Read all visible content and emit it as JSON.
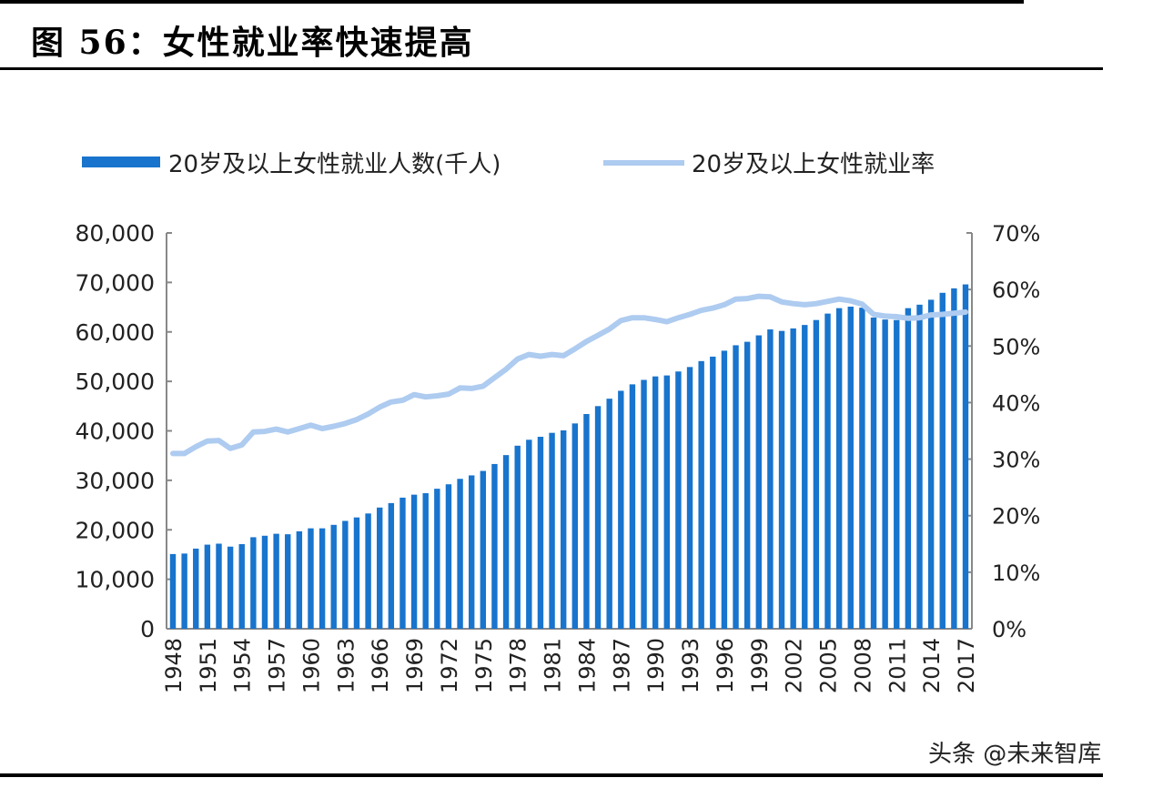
{
  "title": "图 56：女性就业率快速提高",
  "watermark": "头条 @未来智库",
  "colors": {
    "bar": "#1874cd",
    "line": "#aecbf0",
    "axis": "#888888"
  },
  "chart_data": {
    "type": "bar+line",
    "legend_position": "top",
    "grid": false,
    "categories": [
      1948,
      1949,
      1950,
      1951,
      1952,
      1953,
      1954,
      1955,
      1956,
      1957,
      1958,
      1959,
      1960,
      1961,
      1962,
      1963,
      1964,
      1965,
      1966,
      1967,
      1968,
      1969,
      1970,
      1971,
      1972,
      1973,
      1974,
      1975,
      1976,
      1977,
      1978,
      1979,
      1980,
      1981,
      1982,
      1983,
      1984,
      1985,
      1986,
      1987,
      1988,
      1989,
      1990,
      1991,
      1992,
      1993,
      1994,
      1995,
      1996,
      1997,
      1998,
      1999,
      2000,
      2001,
      2002,
      2003,
      2004,
      2005,
      2006,
      2007,
      2008,
      2009,
      2010,
      2011,
      2012,
      2013,
      2014,
      2015,
      2016,
      2017
    ],
    "x_tick_labels": [
      "1948",
      "1951",
      "1954",
      "1957",
      "1960",
      "1963",
      "1966",
      "1969",
      "1972",
      "1975",
      "1978",
      "1981",
      "1984",
      "1987",
      "1990",
      "1993",
      "1996",
      "1999",
      "2002",
      "2005",
      "2008",
      "2011",
      "2014",
      "2017"
    ],
    "y_left": {
      "range": [
        0,
        80000
      ],
      "tick_labels": [
        "0",
        "10,000",
        "20,000",
        "30,000",
        "40,000",
        "50,000",
        "60,000",
        "70,000",
        "80,000"
      ]
    },
    "y_right": {
      "range": [
        0,
        70
      ],
      "tick_labels": [
        "0%",
        "10%",
        "20%",
        "30%",
        "40%",
        "50%",
        "60%",
        "70%"
      ]
    },
    "series": [
      {
        "name": "20岁及以上女性就业人数(千人)",
        "type": "bar",
        "axis": "left",
        "values": [
          15100,
          15200,
          16200,
          17000,
          17200,
          16600,
          17100,
          18500,
          18800,
          19200,
          19100,
          19700,
          20300,
          20300,
          21000,
          21800,
          22500,
          23300,
          24500,
          25400,
          26500,
          27100,
          27400,
          28300,
          29200,
          30300,
          31000,
          31900,
          33300,
          35100,
          37000,
          38200,
          38800,
          39600,
          40100,
          41500,
          43400,
          45000,
          46500,
          48100,
          49400,
          50300,
          51000,
          51200,
          52000,
          52900,
          54100,
          55000,
          56200,
          57300,
          58000,
          59300,
          60500,
          60200,
          60700,
          61400,
          62400,
          63700,
          64800,
          65100,
          64900,
          62900,
          62500,
          62400,
          64800,
          65500,
          66500,
          67900,
          68800,
          69600
        ]
      },
      {
        "name": "20岁及以上女性就业率",
        "type": "line",
        "axis": "right",
        "values": [
          31.0,
          31.0,
          32.2,
          33.2,
          33.3,
          31.9,
          32.5,
          34.8,
          34.9,
          35.3,
          34.8,
          35.4,
          36.0,
          35.4,
          35.8,
          36.3,
          37.0,
          38.0,
          39.2,
          40.1,
          40.4,
          41.4,
          41.0,
          41.2,
          41.5,
          42.6,
          42.5,
          42.9,
          44.4,
          45.9,
          47.7,
          48.5,
          48.2,
          48.5,
          48.3,
          49.5,
          50.8,
          51.9,
          53.0,
          54.5,
          55.0,
          55.0,
          54.7,
          54.3,
          55.0,
          55.6,
          56.3,
          56.7,
          57.3,
          58.3,
          58.4,
          58.8,
          58.7,
          57.8,
          57.5,
          57.3,
          57.5,
          57.9,
          58.3,
          58.0,
          57.4,
          55.6,
          55.3,
          55.2,
          54.9,
          55.0,
          55.5,
          55.6,
          55.8,
          56.0
        ]
      }
    ]
  }
}
